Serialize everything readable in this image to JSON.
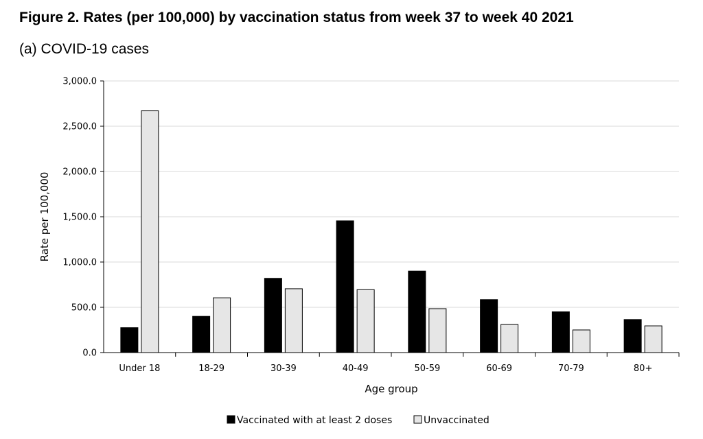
{
  "figure": {
    "title": "Figure 2. Rates (per 100,000) by vaccination status from week 37 to week 40 2021",
    "subtitle": "(a) COVID-19 cases"
  },
  "chart_data": {
    "type": "bar",
    "xlabel": "Age group",
    "ylabel": "Rate per 100,000",
    "ylim": [
      0,
      3000
    ],
    "yticks": [
      0,
      500,
      1000,
      1500,
      2000,
      2500,
      3000
    ],
    "ytick_labels": [
      "0.0",
      "500.0",
      "1,000.0",
      "1,500.0",
      "2,000.0",
      "2,500.0",
      "3,000.0"
    ],
    "grid": true,
    "legend_position": "bottom",
    "categories": [
      "Under 18",
      "18-29",
      "30-39",
      "40-49",
      "50-59",
      "60-69",
      "70-79",
      "80+"
    ],
    "series": [
      {
        "name": "Vaccinated with at least 2 doses",
        "color": "#000000",
        "values": [
          275,
          400,
          820,
          1455,
          900,
          585,
          450,
          365
        ]
      },
      {
        "name": "Unvaccinated",
        "color": "#e6e6e6",
        "values": [
          2670,
          605,
          705,
          695,
          485,
          310,
          250,
          295
        ]
      }
    ]
  }
}
